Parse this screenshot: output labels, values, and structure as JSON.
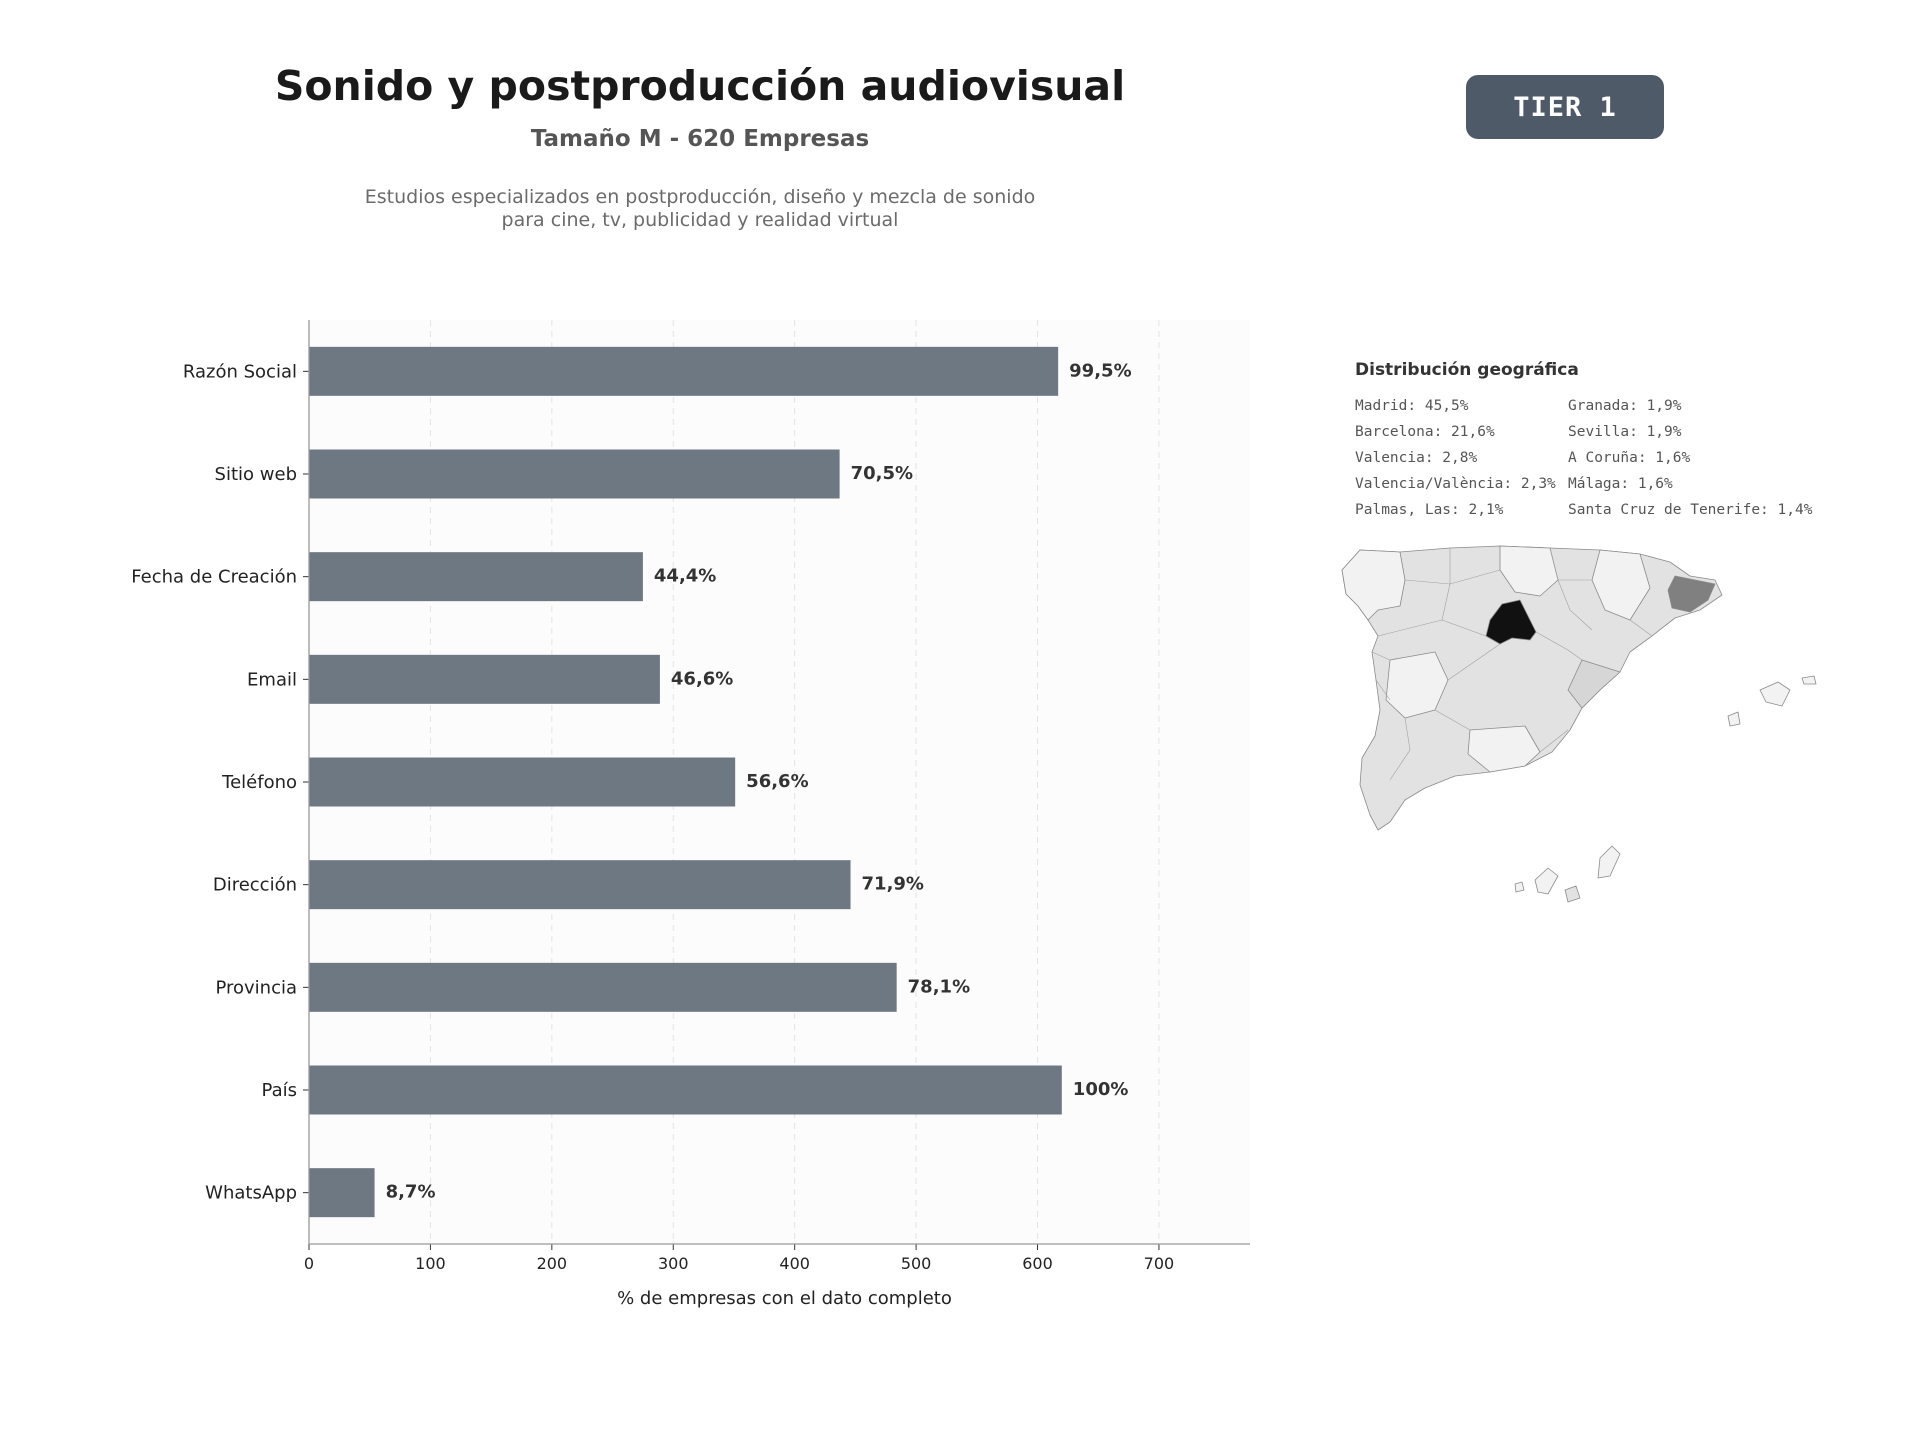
{
  "header": {
    "title": "Sonido y postproducción audiovisual",
    "subtitle": "Tamaño M - 620 Empresas",
    "description_line1": "Estudios especializados en postproducción, diseño y mezcla de sonido",
    "description_line2": "para cine, tv, publicidad y realidad virtual",
    "tier_badge": "TIER 1"
  },
  "colors": {
    "bar": "#6e7882",
    "badge": "#4e5a68",
    "plot_background": "#fcfcfc",
    "grid": "#e4e4e4",
    "map_madrid": "#111111",
    "map_barcelona": "#808080",
    "map_other": "#e2e2e2",
    "map_light": "#f2f2f2"
  },
  "chart_data": {
    "type": "bar",
    "orientation": "horizontal",
    "categories": [
      "Razón Social",
      "Sitio web",
      "Fecha de Creación",
      "Email",
      "Teléfono",
      "Dirección",
      "Provincia",
      "País",
      "WhatsApp"
    ],
    "values": [
      617,
      437,
      275,
      289,
      351,
      446,
      484,
      620,
      54
    ],
    "data_labels": [
      "99,5%",
      "70,5%",
      "44,4%",
      "46,6%",
      "56,6%",
      "71,9%",
      "78,1%",
      "100%",
      "8,7%"
    ],
    "xlabel": "% de empresas con el dato completo",
    "ylabel": "",
    "xlim": [
      0,
      775
    ],
    "xticks": [
      0,
      100,
      200,
      300,
      400,
      500,
      600,
      700
    ],
    "grid": "x-axis, dashed",
    "legend": "none"
  },
  "geo": {
    "title": "Distribución geográfica",
    "entries": [
      "Madrid: 45,5%",
      "Barcelona: 21,6%",
      "Valencia: 2,8%",
      "Valencia/València: 2,3%",
      "Palmas, Las: 2,1%",
      "Granada: 1,9%",
      "Sevilla: 1,9%",
      "A Coruña: 1,6%",
      "Málaga: 1,6%",
      "Santa Cruz de Tenerife: 1,4%"
    ]
  }
}
